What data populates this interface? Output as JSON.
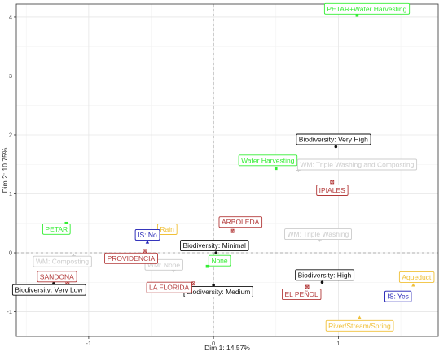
{
  "chart_data": {
    "type": "scatter",
    "xlabel": "Dim 1: 14.57%",
    "ylabel": "Dim 2: 10.75%",
    "xlim": [
      -1.58,
      1.8
    ],
    "ylim": [
      -1.42,
      4.22
    ],
    "x_ticks": [
      -1,
      0,
      1
    ],
    "x_tick_labels": [
      "-1",
      "0",
      "1"
    ],
    "y_ticks": [
      -1,
      0,
      1,
      2,
      3,
      4
    ],
    "y_tick_labels": [
      "-1",
      "0",
      "1",
      "2",
      "3",
      "4"
    ],
    "grid": true,
    "legend": "none",
    "colors": {
      "green": "#33ee33",
      "orange": "#f0c038",
      "blue": "#1a1ab3",
      "red": "#b33a3a",
      "black": "#111111",
      "gray": "#cccccc"
    },
    "points": [
      {
        "label": "PETAR+Water Harvesting",
        "x": 1.15,
        "y": 4.03,
        "color": "green",
        "shape": "square"
      },
      {
        "label": "Water Harvesting",
        "x": 0.5,
        "y": 1.43,
        "color": "green",
        "shape": "square"
      },
      {
        "label": "PETAR",
        "x": -1.18,
        "y": 0.5,
        "color": "green",
        "shape": "square"
      },
      {
        "label": "None",
        "x": -0.05,
        "y": -0.23,
        "color": "green",
        "shape": "square"
      },
      {
        "label": "Biodiversity: Very High",
        "x": 0.98,
        "y": 1.8,
        "color": "black",
        "shape": "circle"
      },
      {
        "label": "Biodiversity: Minimal",
        "x": 0.02,
        "y": 0.0,
        "color": "black",
        "shape": "circle"
      },
      {
        "label": "Biodiversity: High",
        "x": 0.87,
        "y": -0.5,
        "color": "black",
        "shape": "circle"
      },
      {
        "label": "Biodiversity: Medium",
        "x": 0.0,
        "y": -0.55,
        "color": "black",
        "shape": "circle"
      },
      {
        "label": "Biodiversity: Very Low",
        "x": -1.28,
        "y": -0.52,
        "color": "black",
        "shape": "circle"
      },
      {
        "label": "WM: Triple Washing and Composting",
        "x": 0.68,
        "y": 1.4,
        "color": "gray",
        "shape": "plus"
      },
      {
        "label": "WM: Triple Washing",
        "x": 0.85,
        "y": 0.22,
        "color": "gray",
        "shape": "plus"
      },
      {
        "label": "WM: None",
        "x": -0.32,
        "y": -0.3,
        "color": "gray",
        "shape": "plus"
      },
      {
        "label": "WM: Composting",
        "x": -1.12,
        "y": -0.05,
        "color": "gray",
        "shape": "plus"
      },
      {
        "label": "IPIALES",
        "x": 0.95,
        "y": 1.2,
        "color": "red",
        "shape": "square-x"
      },
      {
        "label": "ARBOLEDA",
        "x": 0.15,
        "y": 0.37,
        "color": "red",
        "shape": "square-x"
      },
      {
        "label": "PROVIDENCIA",
        "x": -0.55,
        "y": 0.03,
        "color": "red",
        "shape": "square-x"
      },
      {
        "label": "LA FLORIDA",
        "x": -0.16,
        "y": -0.52,
        "color": "red",
        "shape": "square-x"
      },
      {
        "label": "EL PEÑOL",
        "x": 0.75,
        "y": -0.58,
        "color": "red",
        "shape": "square-x"
      },
      {
        "label": "SANDONA",
        "x": -1.17,
        "y": -0.5,
        "color": "red",
        "shape": "square-x"
      },
      {
        "label": "Rain",
        "x": -0.45,
        "y": 0.29,
        "color": "orange",
        "shape": "triangle"
      },
      {
        "label": "Aqueduct",
        "x": 1.6,
        "y": -0.55,
        "color": "orange",
        "shape": "triangle"
      },
      {
        "label": "River/Stream/Spring",
        "x": 1.17,
        "y": -1.1,
        "color": "orange",
        "shape": "triangle"
      },
      {
        "label": "IS: No",
        "x": -0.53,
        "y": 0.18,
        "color": "blue",
        "shape": "triangle"
      },
      {
        "label": "IS: Yes",
        "x": 1.4,
        "y": -0.74,
        "color": "blue",
        "shape": "triangle"
      }
    ]
  }
}
